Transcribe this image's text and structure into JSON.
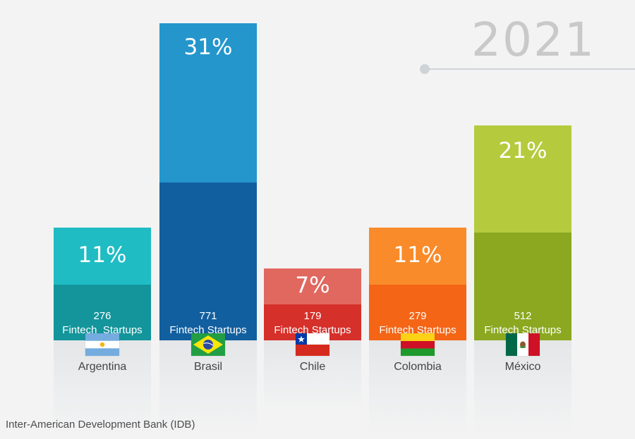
{
  "year": "2021",
  "source": "Inter-American Development Bank (IDB)",
  "colors": {
    "background": "#f3f3f3",
    "year_text": "#c9c9c9"
  },
  "chart_data": {
    "type": "bar",
    "title": "",
    "categories": [
      "Argentina",
      "Brasil",
      "Chile",
      "Colombia",
      "México"
    ],
    "series": [
      {
        "name": "",
        "values": [
          11,
          31,
          7,
          11,
          21
        ]
      },
      {
        "name": "",
        "values": [
          276,
          771,
          179,
          279,
          512
        ]
      }
    ],
    "percent_labels": [
      "11%",
      "31%",
      "7%",
      "11%",
      "21%"
    ],
    "count_labels": [
      "276\nFintech  Startups",
      "771\nFintech Startups",
      "179\nFintech Startups",
      "279\nFintech Startups",
      "512\nFintech Startups"
    ],
    "flags": [
      "argentina-flag-icon",
      "brazil-flag-icon",
      "chile-flag-icon",
      "colombia-flag-icon",
      "mexico-flag-icon"
    ],
    "bar_colors": [
      {
        "top": "#1fbcc4",
        "bottom": "#13959b"
      },
      {
        "top": "#2496cc",
        "bottom": "#125f9f"
      },
      {
        "top": "#e0685f",
        "bottom": "#d6302a"
      },
      {
        "top": "#f98b2a",
        "bottom": "#f46516"
      },
      {
        "top": "#b5cb3d",
        "bottom": "#8ba820"
      }
    ],
    "ylim": [
      0,
      31
    ],
    "grid": false,
    "legend": "none"
  }
}
